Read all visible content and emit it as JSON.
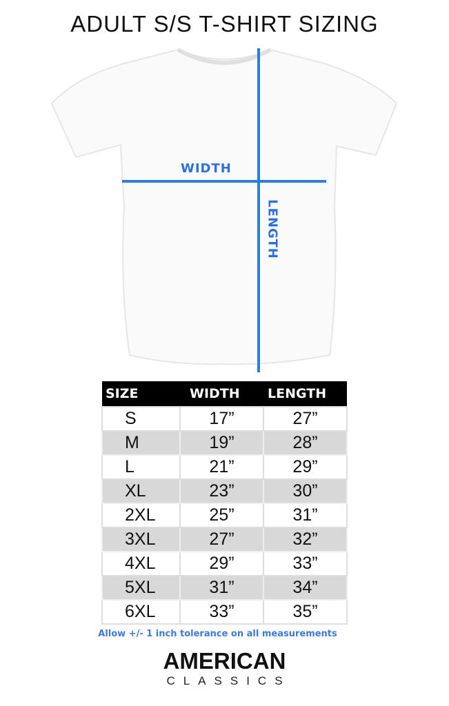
{
  "title": "ADULT S/S T-SHIRT SIZING",
  "diagram": {
    "width_label": "WIDTH",
    "length_label": "LENGTH",
    "line_color": "#2b7de0"
  },
  "table": {
    "headers": [
      "SIZE",
      "WIDTH",
      "LENGTH"
    ],
    "rows": [
      [
        "S",
        "17”",
        "27”"
      ],
      [
        "M",
        "19”",
        "28”"
      ],
      [
        "L",
        "21”",
        "29”"
      ],
      [
        "XL",
        "23”",
        "30”"
      ],
      [
        "2XL",
        "25”",
        "31”"
      ],
      [
        "3XL",
        "27”",
        "32”"
      ],
      [
        "4XL",
        "29”",
        "33”"
      ],
      [
        "5XL",
        "31”",
        "34”"
      ],
      [
        "6XL",
        "33”",
        "35”"
      ]
    ]
  },
  "note": "Allow +/- 1 inch tolerance on all measurements",
  "logo": {
    "line1": "AMERICAN",
    "line2": "CLASSICS"
  }
}
